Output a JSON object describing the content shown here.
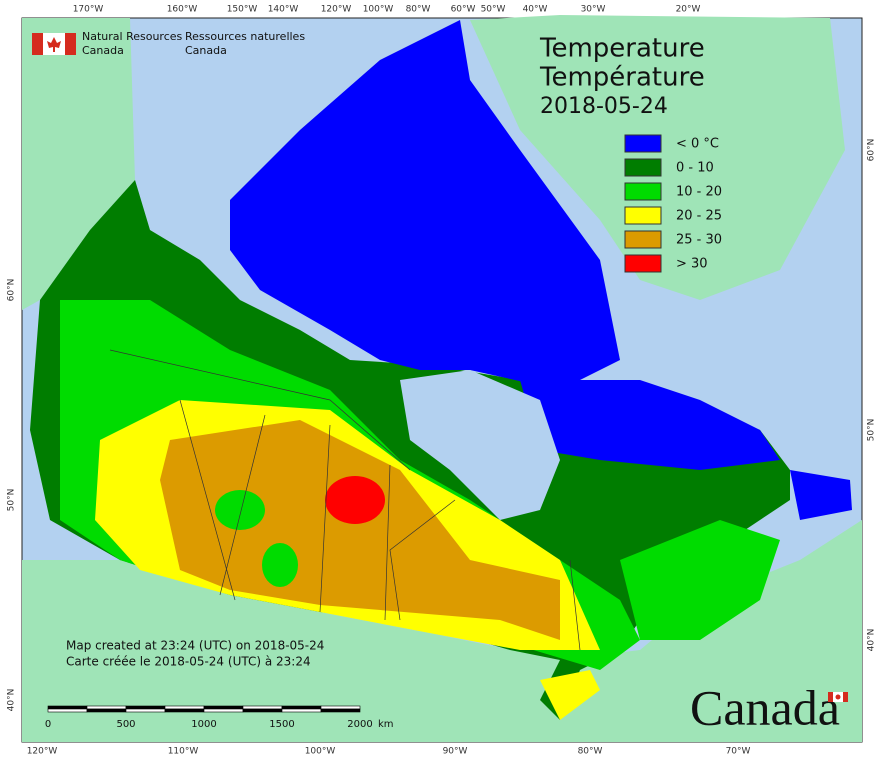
{
  "agency": {
    "en": [
      "Natural Resources",
      "Canada"
    ],
    "fr": [
      "Ressources naturelles",
      "Canada"
    ]
  },
  "title": [
    "Temperature",
    "Température"
  ],
  "date": "2018-05-24",
  "legend": [
    {
      "label": "< 0 °C",
      "color": "#0000ff"
    },
    {
      "label": "0 - 10",
      "color": "#007d00"
    },
    {
      "label": "10 - 20",
      "color": "#00dc00"
    },
    {
      "label": "20 - 25",
      "color": "#ffff00"
    },
    {
      "label": "25 - 30",
      "color": "#dc9b00"
    },
    {
      "label": "> 30",
      "color": "#ff0000"
    }
  ],
  "notes": [
    "Map created at 23:24 (UTC) on 2018-05-24",
    "Carte créée le 2018-05-24 (UTC) à 23:24"
  ],
  "scale": {
    "labels": [
      "0",
      "500",
      "1000",
      "1500",
      "2000"
    ],
    "unit": "km"
  },
  "top_labels": [
    "170°W",
    "160°W",
    "150°W",
    "140°W",
    "120°W",
    "100°W",
    "80°W",
    "60°W",
    "50°W",
    "40°W",
    "30°W",
    "20°W"
  ],
  "bottom_labels": [
    "120°W",
    "110°W",
    "100°W",
    "90°W",
    "80°W",
    "70°W"
  ],
  "left_labels": [
    "60°N",
    "50°N",
    "40°N"
  ],
  "right_labels": [
    "60°N",
    "50°N",
    "40°N"
  ],
  "wordmark": "Canada"
}
